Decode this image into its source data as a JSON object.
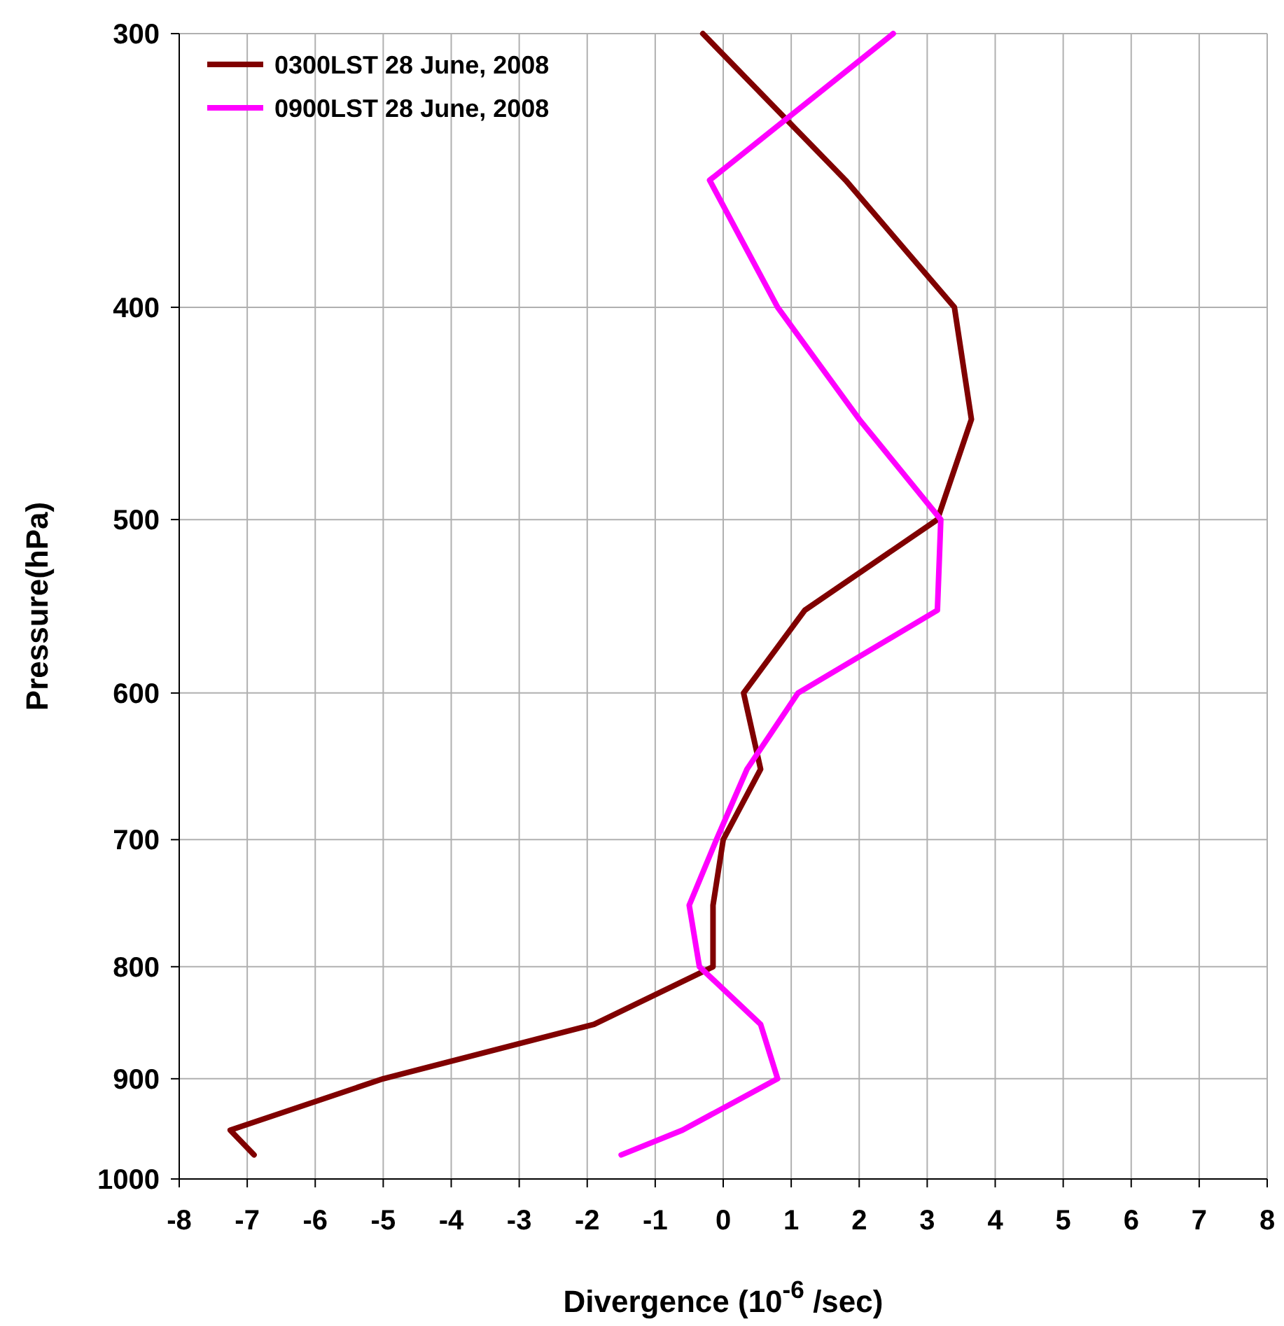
{
  "chart_data": {
    "type": "line",
    "xlabel": "Divergence (10$^{-6}$ /sec)",
    "ylabel": "Pressure(hPa)",
    "series": [
      {
        "name": "0300LST 28 June, 2008",
        "color": "#800000",
        "x": [
          -0.3,
          1.8,
          3.4,
          3.65,
          3.15,
          1.2,
          0.3,
          0.55,
          0,
          -0.15,
          -0.15,
          -1.9,
          -5.0,
          -7.25,
          -6.9
        ],
        "values": [
          300,
          350,
          400,
          450,
          500,
          550,
          600,
          650,
          700,
          750,
          800,
          850,
          900,
          950,
          975
        ]
      },
      {
        "name": "0900LST 28 June, 2008",
        "color": "#ff00ff",
        "x": [
          2.5,
          -0.2,
          0.8,
          2.0,
          3.2,
          3.15,
          1.1,
          0.35,
          -0.1,
          -0.5,
          -0.35,
          0.55,
          0.8,
          -0.6,
          -1.5
        ],
        "values": [
          300,
          350,
          400,
          450,
          500,
          550,
          600,
          650,
          700,
          750,
          800,
          850,
          900,
          950,
          975
        ]
      }
    ],
    "xlim": [
      -8,
      8
    ],
    "xticks": [
      -8,
      -7,
      -6,
      -5,
      -4,
      -3,
      -2,
      -1,
      0,
      1,
      2,
      3,
      4,
      5,
      6,
      7,
      8
    ],
    "ylim": [
      1000,
      300
    ],
    "yticks": [
      300,
      400,
      500,
      600,
      700,
      800,
      900,
      1000
    ],
    "log": "y",
    "grid": true,
    "legend": "top left",
    "line_style": "solid"
  }
}
